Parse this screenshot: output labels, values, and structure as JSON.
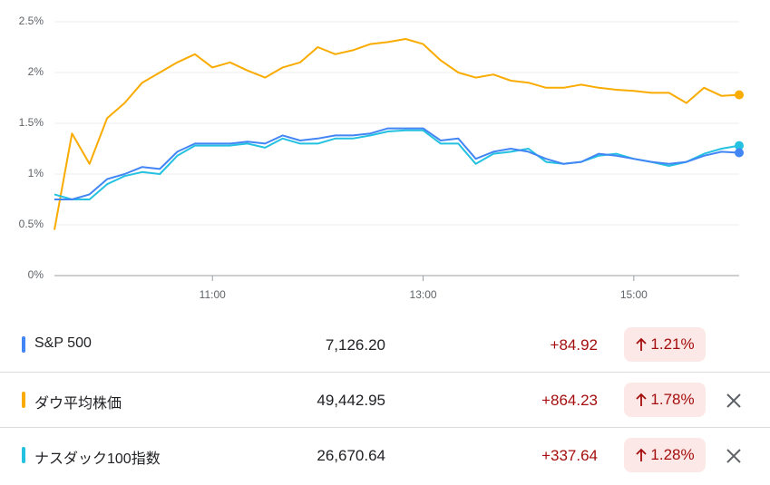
{
  "chart_data": {
    "type": "line",
    "x": [
      570,
      580,
      590,
      600,
      610,
      620,
      630,
      640,
      650,
      660,
      670,
      680,
      690,
      700,
      710,
      720,
      730,
      740,
      750,
      760,
      770,
      780,
      790,
      800,
      810,
      820,
      830,
      840,
      850,
      860,
      870,
      880,
      890,
      900,
      910,
      920,
      930,
      940,
      950,
      960
    ],
    "xlim": [
      570,
      960
    ],
    "xticks": [
      {
        "value": 660,
        "label": "11:00"
      },
      {
        "value": 780,
        "label": "13:00"
      },
      {
        "value": 900,
        "label": "15:00"
      }
    ],
    "ylim": [
      0,
      2.5
    ],
    "yticks": [
      {
        "value": 0,
        "label": "0%"
      },
      {
        "value": 0.5,
        "label": "0.5%"
      },
      {
        "value": 1,
        "label": "1%"
      },
      {
        "value": 1.5,
        "label": "1.5%"
      },
      {
        "value": 2,
        "label": "2%"
      },
      {
        "value": 2.5,
        "label": "2.5%"
      }
    ],
    "grid": true,
    "series": [
      {
        "name": "S&P 500",
        "color": "#4285f4",
        "values": [
          0.75,
          0.75,
          0.8,
          0.95,
          1.0,
          1.07,
          1.05,
          1.22,
          1.3,
          1.3,
          1.3,
          1.32,
          1.3,
          1.38,
          1.33,
          1.35,
          1.38,
          1.38,
          1.4,
          1.45,
          1.45,
          1.45,
          1.33,
          1.35,
          1.15,
          1.22,
          1.25,
          1.22,
          1.15,
          1.1,
          1.12,
          1.2,
          1.18,
          1.15,
          1.12,
          1.1,
          1.12,
          1.18,
          1.22,
          1.21
        ]
      },
      {
        "name": "ダウ平均株価",
        "color": "#f9ab00",
        "values": [
          0.45,
          1.4,
          1.1,
          1.55,
          1.7,
          1.9,
          2.0,
          2.1,
          2.18,
          2.05,
          2.1,
          2.02,
          1.95,
          2.05,
          2.1,
          2.25,
          2.18,
          2.22,
          2.28,
          2.3,
          2.33,
          2.28,
          2.12,
          2.0,
          1.95,
          1.98,
          1.92,
          1.9,
          1.85,
          1.85,
          1.88,
          1.85,
          1.83,
          1.82,
          1.8,
          1.8,
          1.7,
          1.85,
          1.77,
          1.78
        ]
      },
      {
        "name": "ナスダック100指数",
        "color": "#24c1e0",
        "values": [
          0.8,
          0.75,
          0.75,
          0.9,
          0.98,
          1.02,
          1.0,
          1.18,
          1.28,
          1.28,
          1.28,
          1.3,
          1.26,
          1.35,
          1.3,
          1.3,
          1.35,
          1.35,
          1.38,
          1.42,
          1.43,
          1.43,
          1.3,
          1.3,
          1.1,
          1.2,
          1.22,
          1.25,
          1.12,
          1.1,
          1.12,
          1.18,
          1.2,
          1.15,
          1.12,
          1.08,
          1.12,
          1.2,
          1.25,
          1.28
        ]
      }
    ]
  },
  "table": {
    "rows": [
      {
        "price": "7,126.20",
        "change": "+84.92",
        "percent": "1.21%"
      },
      {
        "price": "49,442.95",
        "change": "+864.23",
        "percent": "1.78%"
      },
      {
        "price": "26,670.64",
        "change": "+337.64",
        "percent": "1.28%"
      }
    ]
  }
}
